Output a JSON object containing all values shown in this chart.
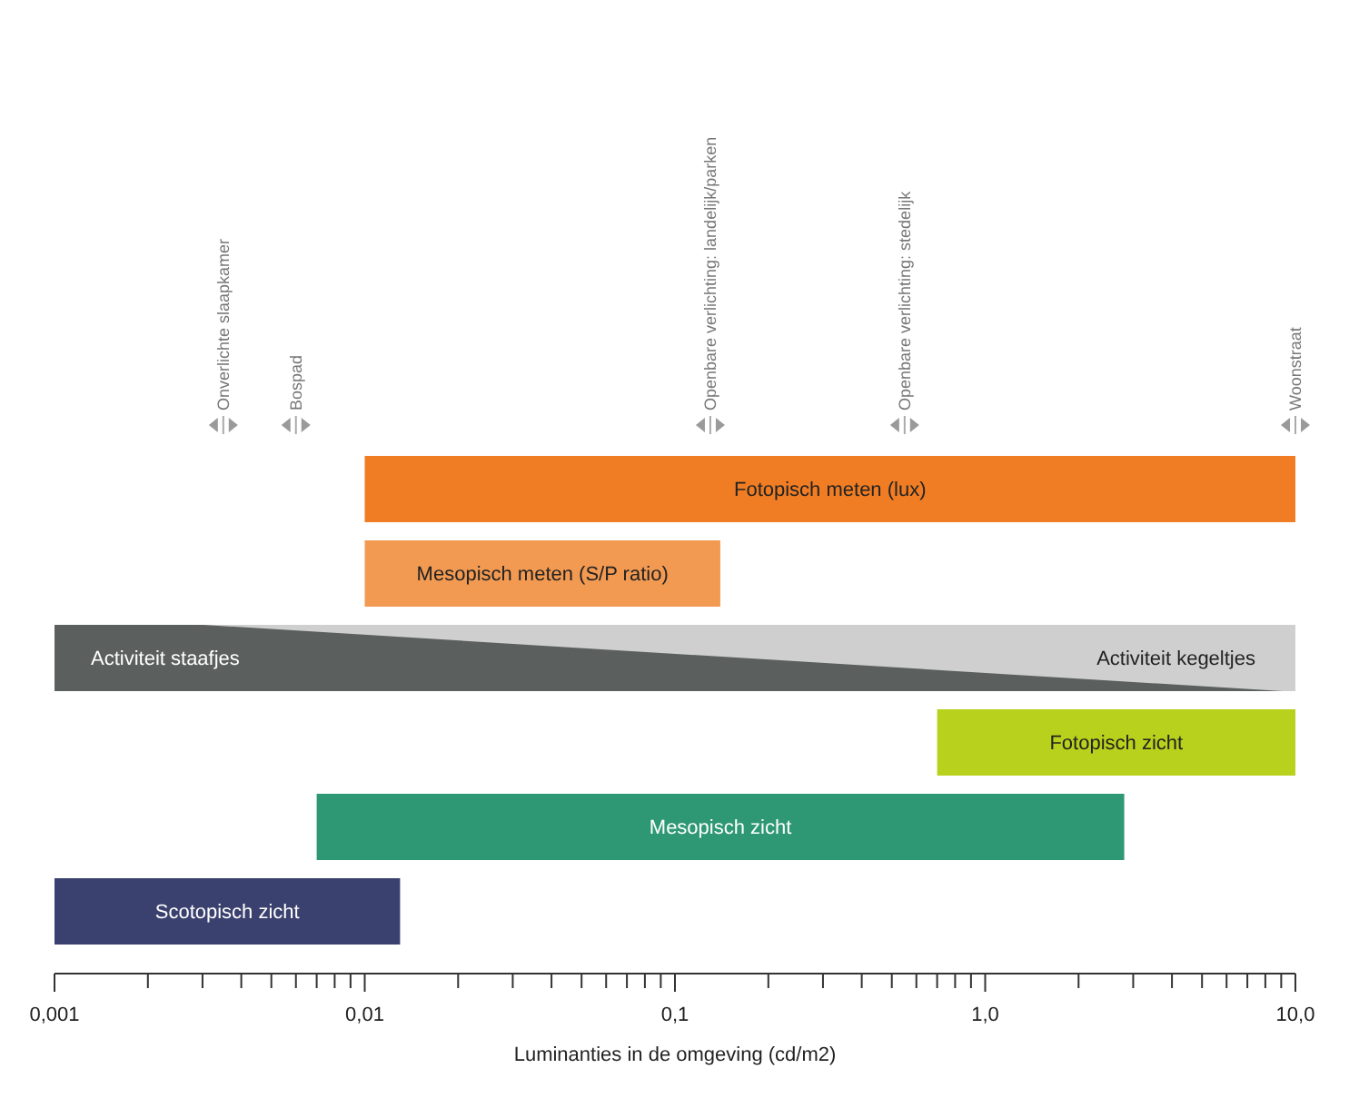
{
  "chart_data": {
    "type": "bar",
    "orientation": "horizontal",
    "log": "x",
    "xlabel": "Luminanties in de omgeving (cd/m2)",
    "categories": [
      null,
      null,
      null,
      null,
      null,
      null
    ],
    "base": [
      0.01,
      0.01,
      0.001,
      0.7,
      0.007,
      0.001
    ],
    "values": [
      9.99,
      0.13,
      9.999,
      9.3,
      2.8,
      0.012
    ],
    "colors": [
      "#f07d24",
      "#f29a52",
      "#cfcfcf",
      "#b7d11c",
      "#2e9874",
      "#3b416e"
    ],
    "xlim": [
      0.001,
      10
    ],
    "xticks": [
      {
        "value": 0.001,
        "label": "0,001"
      },
      {
        "value": 0.002,
        "label": null
      },
      {
        "value": 0.003,
        "label": null
      },
      {
        "value": 0.004,
        "label": null
      },
      {
        "value": 0.005,
        "label": null
      },
      {
        "value": 0.006,
        "label": null
      },
      {
        "value": 0.007,
        "label": null
      },
      {
        "value": 0.008,
        "label": null
      },
      {
        "value": 0.009,
        "label": null
      },
      {
        "value": 0.01,
        "label": "0,01"
      },
      {
        "value": 0.02,
        "label": null
      },
      {
        "value": 0.03,
        "label": null
      },
      {
        "value": 0.04,
        "label": null
      },
      {
        "value": 0.05,
        "label": null
      },
      {
        "value": 0.06,
        "label": null
      },
      {
        "value": 0.07,
        "label": null
      },
      {
        "value": 0.08,
        "label": null
      },
      {
        "value": 0.09,
        "label": null
      },
      {
        "value": 0.1,
        "label": "0,1"
      },
      {
        "value": 0.2,
        "label": null
      },
      {
        "value": 0.3,
        "label": null
      },
      {
        "value": 0.4,
        "label": null
      },
      {
        "value": 0.5,
        "label": null
      },
      {
        "value": 0.6,
        "label": null
      },
      {
        "value": 0.7,
        "label": null
      },
      {
        "value": 0.8,
        "label": null
      },
      {
        "value": 0.9,
        "label": null
      },
      {
        "value": 1,
        "label": "1,0"
      },
      {
        "value": 2,
        "label": null
      },
      {
        "value": 3,
        "label": null
      },
      {
        "value": 4,
        "label": null
      },
      {
        "value": 5,
        "label": null
      },
      {
        "value": 6,
        "label": null
      },
      {
        "value": 7,
        "label": null
      },
      {
        "value": 8,
        "label": null
      },
      {
        "value": 9,
        "label": null
      },
      {
        "value": 10,
        "label": "10,0"
      }
    ],
    "tick_labels": "x",
    "ref_lines": [
      {
        "axis": "x",
        "value": 0.0035,
        "label": "Onverlichte slaapkamer"
      },
      {
        "axis": "x",
        "value": 0.006,
        "label": "Bospad"
      },
      {
        "axis": "x",
        "value": 0.13,
        "label": "Openbare verlichting: landelijk/parken"
      },
      {
        "axis": "x",
        "value": 0.55,
        "label": "Openbare verlichting: stedelijk"
      },
      {
        "axis": "x",
        "value": 10,
        "label": "Woonstraat"
      }
    ],
    "annotations": [
      "Fotopisch meten (lux)",
      "Mesopisch meten (S/P ratio)",
      "Activiteit kegeltjes",
      "Fotopisch zicht",
      "Mesopisch zicht",
      "Scotopisch zicht",
      "Activiteit staafjes"
    ]
  }
}
